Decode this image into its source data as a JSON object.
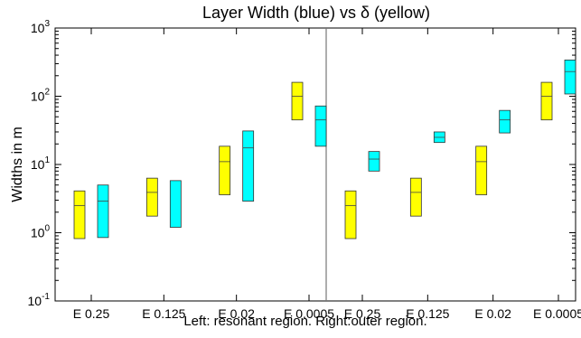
{
  "chart_data": {
    "type": "box",
    "title": "Layer Width (blue) vs δ (yellow)",
    "ylabel": "Widths in m",
    "xlabel": "Left: resonant region. Right:outer region.",
    "yscale": "log",
    "ylim": [
      0.1,
      1000
    ],
    "y_ticks": [
      {
        "base": "10",
        "exp": "-1"
      },
      {
        "base": "10",
        "exp": "0"
      },
      {
        "base": "10",
        "exp": "1"
      },
      {
        "base": "10",
        "exp": "2"
      },
      {
        "base": "10",
        "exp": "3"
      }
    ],
    "groups": [
      {
        "label": "E 0.25",
        "panel": "left"
      },
      {
        "label": "E 0.125",
        "panel": "left"
      },
      {
        "label": "E 0.02",
        "panel": "left"
      },
      {
        "label": "E 0.0005",
        "panel": "left"
      },
      {
        "label": "E 0.25",
        "panel": "right"
      },
      {
        "label": "E 0.125",
        "panel": "right"
      },
      {
        "label": "E 0.02",
        "panel": "right"
      },
      {
        "label": "E 0.0005",
        "panel": "right"
      }
    ],
    "series": [
      {
        "color": "#ffff00",
        "boxes": [
          {
            "low": 0.82,
            "mid": 2.5,
            "high": 4.1
          },
          {
            "low": 1.75,
            "mid": 3.9,
            "high": 6.3
          },
          {
            "low": 3.6,
            "mid": 11,
            "high": 18.5
          },
          {
            "low": 45,
            "mid": 100,
            "high": 160
          },
          {
            "low": 0.82,
            "mid": 2.5,
            "high": 4.1
          },
          {
            "low": 1.75,
            "mid": 3.9,
            "high": 6.3
          },
          {
            "low": 3.6,
            "mid": 11,
            "high": 18.5
          },
          {
            "low": 45,
            "mid": 100,
            "high": 160
          }
        ]
      },
      {
        "color": "#00ffff",
        "boxes": [
          {
            "low": 0.85,
            "mid": 2.9,
            "high": 5.0
          },
          {
            "low": 1.2,
            "mid": null,
            "high": 5.8
          },
          {
            "low": 2.9,
            "mid": 17.5,
            "high": 31
          },
          {
            "low": 18.5,
            "mid": 45,
            "high": 72
          },
          {
            "low": 8.0,
            "mid": 12,
            "high": 15.5
          },
          {
            "low": 21,
            "mid": 25,
            "high": 30
          },
          {
            "low": 29,
            "mid": 45,
            "high": 62
          },
          {
            "low": 108,
            "mid": 230,
            "high": 340
          }
        ]
      }
    ]
  }
}
